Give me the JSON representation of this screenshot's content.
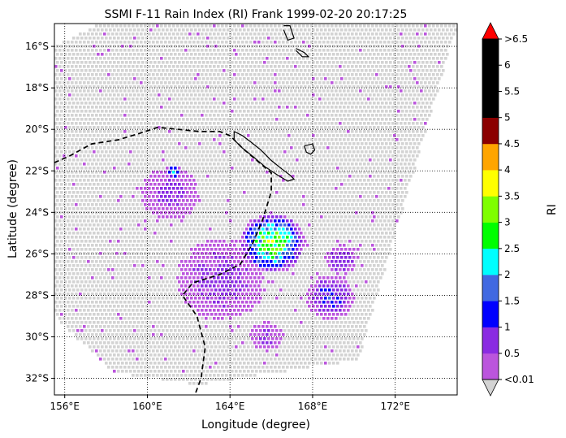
{
  "chart_data": {
    "type": "heatmap",
    "title": "SSMI F-11 Rain Index (RI) Frank 1999-02-20 20:17:25",
    "xlabel": "Longitude (degree)",
    "ylabel": "Latitude (degree)",
    "colorbar_label": "RI",
    "xlim": [
      155.5,
      175.0
    ],
    "ylim": [
      -32.8,
      -14.9
    ],
    "x_ticks": [
      {
        "value": 156,
        "label": "156°E"
      },
      {
        "value": 160,
        "label": "160°E"
      },
      {
        "value": 164,
        "label": "164°E"
      },
      {
        "value": 168,
        "label": "168°E"
      },
      {
        "value": 172,
        "label": "172°E"
      }
    ],
    "y_ticks": [
      {
        "value": -16,
        "label": "16°S"
      },
      {
        "value": -18,
        "label": "18°S"
      },
      {
        "value": -20,
        "label": "20°S"
      },
      {
        "value": -22,
        "label": "22°S"
      },
      {
        "value": -24,
        "label": "24°S"
      },
      {
        "value": -26,
        "label": "26°S"
      },
      {
        "value": -28,
        "label": "28°S"
      },
      {
        "value": -30,
        "label": "30°S"
      },
      {
        "value": -32,
        "label": "32°S"
      }
    ],
    "grid": true,
    "colorbar": {
      "colors": [
        "#bb55dd",
        "#8a2be2",
        "#0000ff",
        "#4169e1",
        "#00ffff",
        "#00ff00",
        "#7fff00",
        "#ffff00",
        "#ffa500",
        "#8b0000",
        "#000000",
        "#000000",
        "#000000"
      ],
      "under_color": "#d3d3d3",
      "over_color": "#ff0000",
      "tick_labels": [
        "<0.01",
        "0.5",
        "1",
        "1.5",
        "2",
        "2.5",
        "3",
        "3.5",
        "4",
        "4.5",
        "5",
        "5.5",
        "6",
        ">6.5"
      ]
    },
    "swath": {
      "corners": [
        [
          157.7,
          -14.9
        ],
        [
          175.0,
          -14.9
        ],
        [
          170.2,
          -31.1
        ],
        [
          162.4,
          -32.3
        ],
        [
          158.3,
          -31.7
        ],
        [
          155.5,
          -29.0
        ],
        [
          155.5,
          -16.0
        ]
      ]
    },
    "no_rain_color": "#d3d3d3",
    "rain_regions": [
      {
        "name": "typhoon core",
        "center": [
          166.0,
          -25.4
        ],
        "radius_deg": 1.5,
        "peak": 3.6
      },
      {
        "name": "small blob near 161E",
        "center": [
          161.2,
          -22.0
        ],
        "radius_deg": 0.35,
        "peak": 2.5
      },
      {
        "name": "light band west",
        "center": [
          161.0,
          -23.0
        ],
        "radius_deg": 1.6,
        "peak": 0.7
      },
      {
        "name": "light band south",
        "center": [
          163.5,
          -27.2
        ],
        "radius_deg": 2.3,
        "peak": 0.8
      },
      {
        "name": "rainband southeast",
        "center": [
          168.8,
          -28.0
        ],
        "radius_deg": 1.2,
        "peak": 1.3
      },
      {
        "name": "east patch",
        "center": [
          169.3,
          -26.2
        ],
        "radius_deg": 0.8,
        "peak": 1.0
      },
      {
        "name": "south patch",
        "center": [
          165.7,
          -29.9
        ],
        "radius_deg": 0.9,
        "peak": 0.6
      }
    ],
    "coastlines": [
      [
        [
          164.2,
          -20.1
        ],
        [
          164.6,
          -20.3
        ],
        [
          165.0,
          -20.6
        ],
        [
          165.5,
          -21.0
        ],
        [
          166.0,
          -21.5
        ],
        [
          166.5,
          -21.9
        ],
        [
          166.9,
          -22.2
        ],
        [
          167.1,
          -22.4
        ],
        [
          166.8,
          -22.5
        ],
        [
          166.3,
          -22.2
        ],
        [
          165.7,
          -21.8
        ],
        [
          165.1,
          -21.3
        ],
        [
          164.6,
          -20.9
        ],
        [
          164.2,
          -20.5
        ],
        [
          164.2,
          -20.1
        ]
      ],
      [
        [
          167.6,
          -20.8
        ],
        [
          168.0,
          -20.7
        ],
        [
          168.1,
          -21.0
        ],
        [
          167.9,
          -21.2
        ],
        [
          167.7,
          -21.1
        ],
        [
          167.6,
          -20.8
        ]
      ],
      [
        [
          166.6,
          -15.0
        ],
        [
          166.9,
          -15.0
        ],
        [
          167.1,
          -15.6
        ],
        [
          166.8,
          -15.7
        ],
        [
          166.6,
          -15.2
        ]
      ],
      [
        [
          167.2,
          -16.1
        ],
        [
          167.6,
          -16.3
        ],
        [
          167.8,
          -16.5
        ],
        [
          167.5,
          -16.5
        ],
        [
          167.2,
          -16.2
        ]
      ]
    ],
    "track": [
      [
        155.5,
        -21.6
      ],
      [
        156.2,
        -21.3
      ],
      [
        157.3,
        -20.7
      ],
      [
        158.6,
        -20.5
      ],
      [
        159.6,
        -20.2
      ],
      [
        160.5,
        -19.9
      ],
      [
        161.5,
        -20.0
      ],
      [
        162.5,
        -20.1
      ],
      [
        163.5,
        -20.1
      ],
      [
        164.0,
        -20.3
      ],
      [
        164.6,
        -20.9
      ],
      [
        165.3,
        -21.5
      ],
      [
        166.0,
        -22.1
      ],
      [
        166.0,
        -23.0
      ],
      [
        165.6,
        -24.3
      ],
      [
        165.1,
        -25.5
      ],
      [
        164.5,
        -26.5
      ],
      [
        163.5,
        -27.0
      ],
      [
        162.2,
        -27.4
      ],
      [
        161.7,
        -28.0
      ],
      [
        162.4,
        -29.0
      ],
      [
        162.8,
        -30.5
      ],
      [
        162.6,
        -32.0
      ],
      [
        162.3,
        -32.8
      ]
    ]
  }
}
